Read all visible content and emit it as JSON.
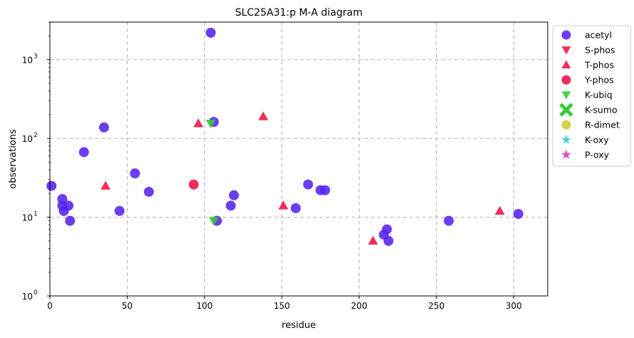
{
  "chart_data": {
    "type": "scatter",
    "title": "SLC25A31:p M-A diagram",
    "xlabel": "residue",
    "ylabel": "observations",
    "xlim": [
      0,
      322
    ],
    "ylim": [
      1,
      3000
    ],
    "yscale": "log",
    "xticks": [
      "0",
      "50",
      "100",
      "150",
      "200",
      "250",
      "300"
    ],
    "yticks": [
      {
        "base": "10",
        "exp": "0",
        "value": 1
      },
      {
        "base": "10",
        "exp": "1",
        "value": 10
      },
      {
        "base": "10",
        "exp": "2",
        "value": 100
      },
      {
        "base": "10",
        "exp": "3",
        "value": 1000
      }
    ],
    "grid": true,
    "legend_position": "outside-right",
    "series": [
      {
        "name": "acetyl",
        "marker": "circle",
        "color": "#5522ee",
        "points": [
          [
            1,
            25
          ],
          [
            8,
            14
          ],
          [
            8,
            17
          ],
          [
            9,
            12
          ],
          [
            12,
            14
          ],
          [
            13,
            9
          ],
          [
            22,
            67
          ],
          [
            35,
            138
          ],
          [
            45,
            12
          ],
          [
            55,
            36
          ],
          [
            64,
            21
          ],
          [
            104,
            2200
          ],
          [
            106,
            162
          ],
          [
            108,
            9
          ],
          [
            117,
            14
          ],
          [
            119,
            19
          ],
          [
            159,
            13
          ],
          [
            167,
            26
          ],
          [
            175,
            22
          ],
          [
            178,
            22
          ],
          [
            216,
            6
          ],
          [
            218,
            7
          ],
          [
            219,
            5
          ],
          [
            258,
            9
          ],
          [
            303,
            11
          ]
        ]
      },
      {
        "name": "S-phos",
        "marker": "triangle-down",
        "color": "#ee1144",
        "points": []
      },
      {
        "name": "T-phos",
        "marker": "triangle-up",
        "color": "#ee1144",
        "points": [
          [
            36,
            25
          ],
          [
            96,
            155
          ],
          [
            138,
            190
          ],
          [
            151,
            14
          ],
          [
            209,
            5
          ],
          [
            291,
            12
          ]
        ]
      },
      {
        "name": "Y-phos",
        "marker": "circle",
        "color": "#ee1144",
        "points": [
          [
            93,
            26
          ]
        ]
      },
      {
        "name": "K-ubiq",
        "marker": "triangle-down",
        "color": "#33cc33",
        "points": [
          [
            104,
            155
          ],
          [
            106,
            9
          ]
        ]
      },
      {
        "name": "K-sumo",
        "marker": "x",
        "color": "#33cc33",
        "points": []
      },
      {
        "name": "R-dimet",
        "marker": "circle",
        "color": "#cccc33",
        "points": []
      },
      {
        "name": "K-oxy",
        "marker": "star",
        "color": "#33cccc",
        "points": []
      },
      {
        "name": "P-oxy",
        "marker": "star",
        "color": "#cc33cc",
        "points": []
      }
    ]
  }
}
